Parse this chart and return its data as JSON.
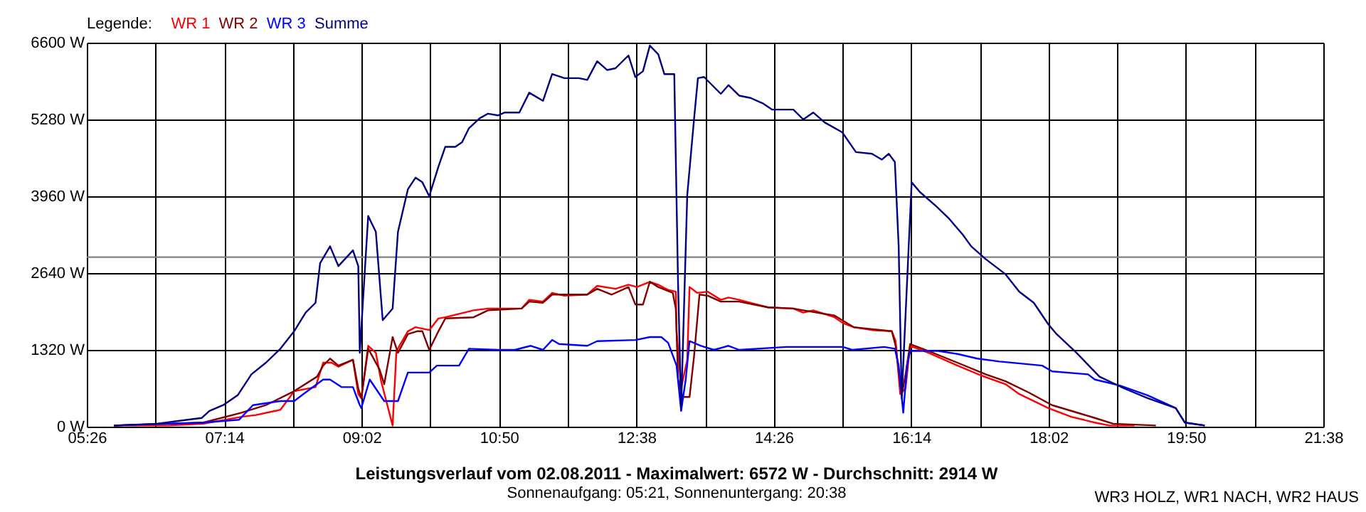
{
  "chart_data": {
    "type": "line",
    "title": "Leistungsverlauf vom 02.08.2011 - Maximalwert: 6572 W - Durchschnitt: 2914 W",
    "subtitle": "Sonnenaufgang: 05:21, Sonnenuntergang: 20:38",
    "legend_title": "Legende:",
    "legend": "top left",
    "grid": true,
    "marker": "none",
    "line_style": "solid",
    "annotations": [
      "WR3 HOLZ, WR1 NACH, WR2 HAUS"
    ],
    "xlim": [
      5.4333,
      21.6333
    ],
    "xticks": [
      {
        "value": 5.4333,
        "label": "05:26"
      },
      {
        "value": 6.3333,
        "label": null
      },
      {
        "value": 7.2333,
        "label": "07:14"
      },
      {
        "value": 8.1333,
        "label": null
      },
      {
        "value": 9.0333,
        "label": "09:02"
      },
      {
        "value": 9.9333,
        "label": null
      },
      {
        "value": 10.8333,
        "label": "10:50"
      },
      {
        "value": 11.7333,
        "label": null
      },
      {
        "value": 12.6333,
        "label": "12:38"
      },
      {
        "value": 13.5333,
        "label": null
      },
      {
        "value": 14.4333,
        "label": "14:26"
      },
      {
        "value": 15.3333,
        "label": null
      },
      {
        "value": 16.2333,
        "label": "16:14"
      },
      {
        "value": 17.1333,
        "label": null
      },
      {
        "value": 18.0333,
        "label": "18:02"
      },
      {
        "value": 18.9333,
        "label": null
      },
      {
        "value": 19.8333,
        "label": "19:50"
      },
      {
        "value": 20.7333,
        "label": null
      },
      {
        "value": 21.6333,
        "label": "21:38"
      }
    ],
    "ylim": [
      0,
      6600
    ],
    "yticks": [
      {
        "value": 0,
        "label": "0 W"
      },
      {
        "value": 1320,
        "label": "1320 W"
      },
      {
        "value": 2640,
        "label": "2640 W"
      },
      {
        "value": 3960,
        "label": "3960 W"
      },
      {
        "value": 5280,
        "label": "5280 W"
      },
      {
        "value": 6600,
        "label": "6600 W"
      }
    ],
    "ref_lines": [
      {
        "axis": "y",
        "value": 2914,
        "label": null,
        "color": "#808080"
      }
    ],
    "series": [
      {
        "name": "WR 1",
        "color": "#ff0000",
        "x": [
          5.79,
          6.5,
          6.96,
          7.46,
          7.65,
          7.97,
          8.15,
          8.43,
          8.53,
          8.64,
          8.73,
          8.92,
          8.99,
          9.03,
          9.12,
          9.22,
          9.29,
          9.44,
          9.49,
          9.64,
          9.74,
          9.92,
          10.04,
          10.13,
          10.5,
          10.69,
          11.13,
          11.23,
          11.41,
          11.53,
          11.69,
          11.99,
          12.12,
          12.36,
          12.53,
          12.64,
          12.81,
          12.92,
          13.05,
          13.15,
          13.16,
          13.22,
          13.3,
          13.33,
          13.43,
          13.57,
          13.74,
          13.84,
          13.98,
          14.12,
          14.36,
          14.69,
          14.82,
          14.95,
          15.23,
          15.34,
          15.48,
          15.72,
          15.98,
          16.03,
          16.09,
          16.16,
          16.22,
          16.46,
          16.84,
          17.15,
          17.47,
          17.65,
          18.03,
          18.33,
          18.64,
          18.83,
          19.16
        ],
        "values": [
          20,
          20,
          50,
          170,
          200,
          290,
          610,
          680,
          1100,
          1100,
          1030,
          1150,
          560,
          490,
          1390,
          1270,
          780,
          20,
          1300,
          1640,
          1710,
          1660,
          1860,
          1880,
          2000,
          2030,
          2030,
          2180,
          2150,
          2300,
          2250,
          2270,
          2420,
          2370,
          2440,
          2400,
          2490,
          2440,
          2350,
          2320,
          1640,
          660,
          1150,
          2400,
          2300,
          2320,
          2180,
          2220,
          2180,
          2130,
          2050,
          2030,
          1960,
          2000,
          1880,
          1780,
          1710,
          1660,
          1640,
          1470,
          560,
          660,
          1390,
          1270,
          1050,
          880,
          730,
          560,
          320,
          170,
          70,
          20,
          20
        ]
      },
      {
        "name": "WR 2",
        "color": "#800000",
        "x": [
          5.79,
          6.5,
          6.96,
          7.46,
          7.78,
          8.15,
          8.45,
          8.53,
          8.62,
          8.73,
          8.92,
          8.99,
          9.03,
          9.12,
          9.27,
          9.33,
          9.44,
          9.51,
          9.64,
          9.76,
          9.83,
          9.92,
          10.04,
          10.13,
          10.5,
          10.69,
          11.13,
          11.23,
          11.41,
          11.53,
          11.69,
          11.99,
          12.12,
          12.31,
          12.53,
          12.62,
          12.72,
          12.81,
          12.92,
          13.11,
          13.15,
          13.18,
          13.24,
          13.33,
          13.39,
          13.46,
          13.57,
          13.74,
          13.98,
          14.36,
          14.69,
          14.82,
          15.23,
          15.48,
          15.98,
          16.03,
          16.11,
          16.16,
          16.22,
          16.46,
          16.84,
          17.21,
          17.47,
          17.77,
          18.08,
          18.64,
          18.88,
          19.44
        ],
        "values": [
          20,
          50,
          70,
          240,
          370,
          610,
          860,
          1050,
          1170,
          1050,
          1150,
          660,
          490,
          1340,
          980,
          730,
          1540,
          1270,
          1590,
          1640,
          1640,
          1320,
          1640,
          1860,
          1880,
          2000,
          2030,
          2150,
          2130,
          2270,
          2270,
          2270,
          2370,
          2270,
          2400,
          2100,
          2100,
          2490,
          2400,
          2300,
          2030,
          810,
          510,
          510,
          1220,
          2270,
          2250,
          2150,
          2150,
          2050,
          2030,
          2000,
          1910,
          1710,
          1640,
          1390,
          540,
          900,
          1420,
          1300,
          1100,
          900,
          780,
          590,
          370,
          150,
          50,
          20
        ]
      },
      {
        "name": "WR 3",
        "color": "#0000ff",
        "x": [
          5.79,
          6.48,
          6.96,
          7.43,
          7.61,
          7.97,
          8.15,
          8.27,
          8.53,
          8.62,
          8.77,
          8.92,
          9.01,
          9.03,
          9.14,
          9.33,
          9.51,
          9.64,
          9.76,
          9.92,
          10.02,
          10.31,
          10.44,
          10.82,
          11.04,
          11.25,
          11.41,
          11.53,
          11.62,
          11.99,
          12.12,
          12.62,
          12.81,
          12.96,
          13.05,
          13.16,
          13.22,
          13.28,
          13.33,
          13.48,
          13.65,
          13.84,
          13.98,
          14.6,
          15.34,
          15.46,
          15.88,
          16.02,
          16.07,
          16.13,
          16.18,
          16.22,
          16.59,
          16.84,
          17.1,
          17.39,
          17.71,
          17.95,
          18.08,
          18.55,
          18.64,
          18.96,
          19.33,
          19.7,
          19.82,
          20.08
        ],
        "values": [
          20,
          50,
          70,
          120,
          370,
          440,
          440,
          560,
          810,
          810,
          680,
          680,
          370,
          320,
          810,
          440,
          440,
          930,
          930,
          930,
          1050,
          1050,
          1340,
          1320,
          1320,
          1390,
          1320,
          1490,
          1420,
          1390,
          1470,
          1490,
          1540,
          1540,
          1440,
          1050,
          270,
          810,
          1470,
          1390,
          1320,
          1390,
          1320,
          1370,
          1370,
          1320,
          1370,
          1340,
          1050,
          240,
          1050,
          1300,
          1300,
          1250,
          1170,
          1120,
          1080,
          1050,
          950,
          900,
          810,
          710,
          540,
          320,
          70,
          20
        ]
      },
      {
        "name": "Summe",
        "color": "#000080",
        "x": [
          5.79,
          6.35,
          6.94,
          7.04,
          7.22,
          7.41,
          7.59,
          7.78,
          7.97,
          8.15,
          8.3,
          8.43,
          8.49,
          8.62,
          8.73,
          8.92,
          8.99,
          9.01,
          9.12,
          9.22,
          9.31,
          9.44,
          9.51,
          9.64,
          9.74,
          9.83,
          9.92,
          10.04,
          10.13,
          10.26,
          10.35,
          10.44,
          10.58,
          10.69,
          10.82,
          10.91,
          11.1,
          11.23,
          11.41,
          11.53,
          11.69,
          11.88,
          11.99,
          12.12,
          12.25,
          12.36,
          12.53,
          12.62,
          12.72,
          12.81,
          12.92,
          13.0,
          13.13,
          13.18,
          13.22,
          13.3,
          13.39,
          13.44,
          13.52,
          13.74,
          13.84,
          13.98,
          14.13,
          14.3,
          14.41,
          14.69,
          14.82,
          14.95,
          15.1,
          15.33,
          15.51,
          15.72,
          15.85,
          15.94,
          16.02,
          16.07,
          16.11,
          16.24,
          16.35,
          16.56,
          16.72,
          16.91,
          17.02,
          17.21,
          17.47,
          17.65,
          17.84,
          18.03,
          18.14,
          18.4,
          18.7,
          19.02,
          19.33,
          19.7,
          19.82,
          20.08
        ],
        "values": [
          20,
          50,
          150,
          270,
          370,
          540,
          900,
          1100,
          1340,
          1640,
          1960,
          2130,
          2810,
          3100,
          2760,
          3030,
          2760,
          1270,
          3620,
          3350,
          1830,
          2030,
          3350,
          4080,
          4280,
          4200,
          3960,
          4470,
          4810,
          4810,
          4890,
          5130,
          5300,
          5380,
          5350,
          5400,
          5400,
          5740,
          5600,
          6060,
          5990,
          5990,
          5960,
          6280,
          6130,
          6160,
          6380,
          6010,
          6110,
          6550,
          6400,
          6060,
          6060,
          2440,
          320,
          3980,
          5300,
          5990,
          6010,
          5720,
          5870,
          5690,
          5650,
          5550,
          5450,
          5450,
          5280,
          5400,
          5230,
          5060,
          4720,
          4690,
          4590,
          4690,
          4550,
          3100,
          490,
          4200,
          4030,
          3790,
          3590,
          3300,
          3100,
          2880,
          2620,
          2320,
          2130,
          1760,
          1590,
          1270,
          860,
          660,
          490,
          320,
          70,
          20
        ]
      }
    ]
  }
}
